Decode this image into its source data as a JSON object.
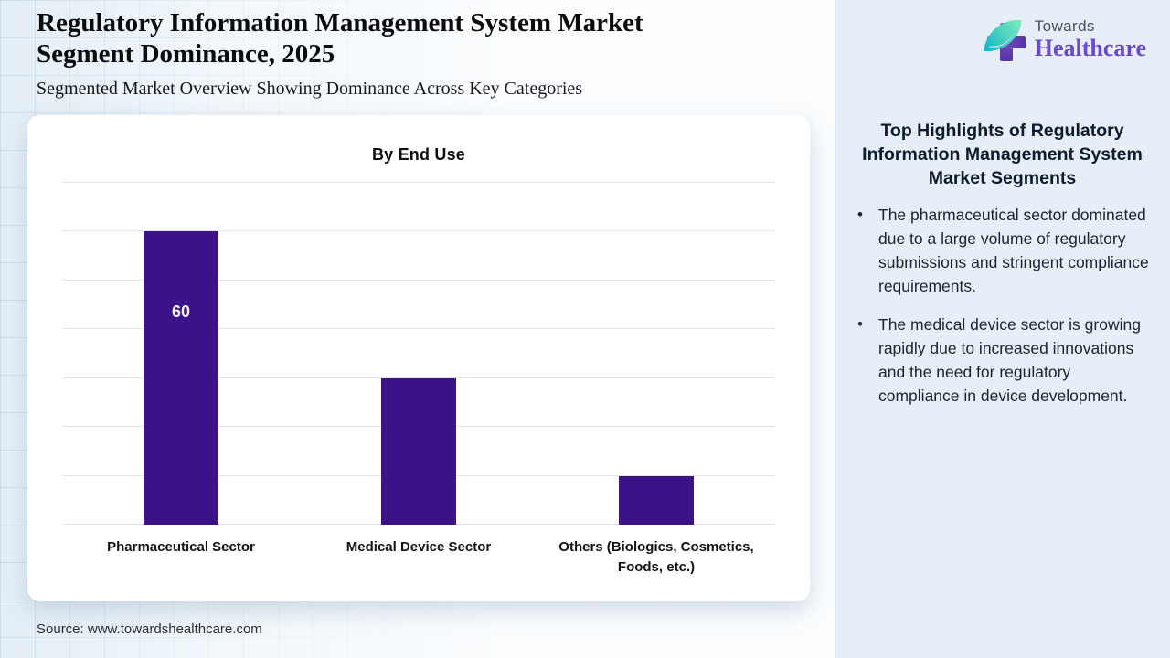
{
  "header": {
    "title_line1": "Regulatory Information Management System Market",
    "title_line2": "Segment Dominance, 2025",
    "subtitle": "Segmented Market Overview Showing Dominance Across Key Categories"
  },
  "logo": {
    "name_top": "Towards",
    "name_bottom": "Healthcare",
    "cross_color": "#6f49c9",
    "leaf_color": "#35cfc3"
  },
  "chart_data": {
    "type": "bar",
    "title": "By End Use",
    "categories": [
      "Pharmaceutical Sector",
      "Medical Device Sector",
      "Others (Biologics, Cosmetics, Foods, etc.)"
    ],
    "values": [
      60,
      30,
      10
    ],
    "bar_labels": [
      "60",
      "",
      ""
    ],
    "ylim": [
      0,
      70
    ],
    "gridline_step": 10,
    "grid": true,
    "y_tick_labels_visible": false,
    "bar_color": "#3b1287",
    "value_label_color": "#f6f0fb",
    "xlabel": "",
    "ylabel": ""
  },
  "sidebar": {
    "heading": "Top Highlights of Regulatory Information Management System Market Segments",
    "bullets": [
      "The pharmaceutical sector dominated due to a large volume of regulatory submissions and stringent compliance requirements.",
      "The medical device sector is growing rapidly due to increased innovations and the need for regulatory compliance in device development."
    ]
  },
  "footer": {
    "source": "Source: www.towardshealthcare.com"
  }
}
